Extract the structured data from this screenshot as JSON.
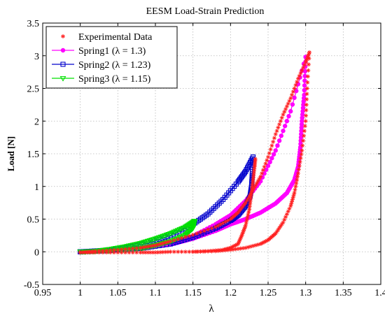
{
  "chart_data": {
    "type": "line",
    "title": "EESM Load-Strain Prediction",
    "xlabel": "λ",
    "ylabel": "Load [N]",
    "xlim": [
      0.95,
      1.4
    ],
    "ylim": [
      -0.5,
      3.5
    ],
    "xticks": [
      0.95,
      1.0,
      1.05,
      1.1,
      1.15,
      1.2,
      1.25,
      1.3,
      1.35,
      1.4
    ],
    "yticks": [
      -0.5,
      0,
      0.5,
      1,
      1.5,
      2,
      2.5,
      3,
      3.5
    ],
    "xtick_labels": [
      "0.95",
      "1",
      "1.05",
      "1.1",
      "1.15",
      "1.2",
      "1.25",
      "1.3",
      "1.35",
      "1.4"
    ],
    "ytick_labels": [
      "-0.5",
      "0",
      "0.5",
      "1",
      "1.5",
      "2",
      "2.5",
      "3",
      "3.5"
    ],
    "grid": true,
    "legend_position": "top-left",
    "series": [
      {
        "name": "Experimental Data",
        "color": "#ff2020",
        "marker": "asterisk",
        "line": false,
        "loading": [
          [
            1.0,
            -0.01
          ],
          [
            1.02,
            -0.01
          ],
          [
            1.05,
            -0.01
          ],
          [
            1.08,
            -0.01
          ],
          [
            1.1,
            -0.01
          ],
          [
            1.12,
            0.0
          ],
          [
            1.15,
            0.0
          ],
          [
            1.18,
            0.01
          ],
          [
            1.2,
            0.03
          ],
          [
            1.22,
            0.06
          ],
          [
            1.24,
            0.12
          ],
          [
            1.25,
            0.18
          ],
          [
            1.26,
            0.28
          ],
          [
            1.27,
            0.45
          ],
          [
            1.28,
            0.7
          ],
          [
            1.285,
            0.9
          ],
          [
            1.29,
            1.2
          ],
          [
            1.295,
            1.55
          ],
          [
            1.3,
            2.0
          ],
          [
            1.302,
            2.5
          ],
          [
            1.305,
            3.05
          ]
        ],
        "unloading": [
          [
            1.305,
            3.05
          ],
          [
            1.3,
            2.9
          ],
          [
            1.29,
            2.65
          ],
          [
            1.28,
            2.35
          ],
          [
            1.27,
            2.1
          ],
          [
            1.26,
            1.8
          ],
          [
            1.25,
            1.45
          ],
          [
            1.24,
            1.15
          ],
          [
            1.23,
            0.95
          ],
          [
            1.22,
            0.75
          ],
          [
            1.21,
            0.6
          ],
          [
            1.2,
            0.5
          ],
          [
            1.18,
            0.38
          ],
          [
            1.15,
            0.26
          ],
          [
            1.12,
            0.16
          ],
          [
            1.1,
            0.1
          ],
          [
            1.08,
            0.06
          ],
          [
            1.05,
            0.03
          ],
          [
            1.02,
            0.01
          ],
          [
            1.0,
            -0.01
          ]
        ],
        "branch2": [
          [
            1.15,
            0.0
          ],
          [
            1.17,
            0.01
          ],
          [
            1.19,
            0.03
          ],
          [
            1.2,
            0.06
          ],
          [
            1.21,
            0.12
          ],
          [
            1.215,
            0.25
          ],
          [
            1.22,
            0.4
          ],
          [
            1.225,
            0.65
          ],
          [
            1.228,
            0.9
          ],
          [
            1.23,
            1.1
          ],
          [
            1.232,
            1.3
          ],
          [
            1.233,
            1.42
          ]
        ]
      },
      {
        "name": "Spring1 (λ = 1.3)",
        "color": "#ff00ff",
        "marker": "circle",
        "line": true,
        "loading": [
          [
            1.0,
            0.0
          ],
          [
            1.03,
            0.01
          ],
          [
            1.06,
            0.03
          ],
          [
            1.09,
            0.06
          ],
          [
            1.12,
            0.12
          ],
          [
            1.15,
            0.24
          ],
          [
            1.18,
            0.42
          ],
          [
            1.2,
            0.56
          ],
          [
            1.22,
            0.78
          ],
          [
            1.24,
            1.08
          ],
          [
            1.26,
            1.55
          ],
          [
            1.28,
            2.15
          ],
          [
            1.3,
            2.98
          ]
        ],
        "unloading": [
          [
            1.3,
            2.98
          ],
          [
            1.298,
            2.4
          ],
          [
            1.295,
            2.0
          ],
          [
            1.293,
            1.6
          ],
          [
            1.29,
            1.3
          ],
          [
            1.285,
            1.1
          ],
          [
            1.275,
            0.9
          ],
          [
            1.26,
            0.74
          ],
          [
            1.24,
            0.6
          ],
          [
            1.22,
            0.5
          ],
          [
            1.2,
            0.42
          ],
          [
            1.18,
            0.32
          ],
          [
            1.15,
            0.2
          ],
          [
            1.12,
            0.11
          ],
          [
            1.08,
            0.05
          ],
          [
            1.04,
            0.02
          ],
          [
            1.0,
            0.0
          ]
        ]
      },
      {
        "name": "Spring2 (λ = 1.23)",
        "color": "#0000cc",
        "marker": "square",
        "line": true,
        "loading": [
          [
            1.0,
            0.0
          ],
          [
            1.03,
            0.02
          ],
          [
            1.06,
            0.06
          ],
          [
            1.09,
            0.13
          ],
          [
            1.12,
            0.25
          ],
          [
            1.15,
            0.42
          ],
          [
            1.17,
            0.58
          ],
          [
            1.19,
            0.8
          ],
          [
            1.21,
            1.07
          ],
          [
            1.22,
            1.23
          ],
          [
            1.23,
            1.45
          ]
        ],
        "unloading": [
          [
            1.23,
            1.45
          ],
          [
            1.229,
            1.2
          ],
          [
            1.228,
            1.0
          ],
          [
            1.226,
            0.85
          ],
          [
            1.22,
            0.7
          ],
          [
            1.21,
            0.56
          ],
          [
            1.2,
            0.48
          ],
          [
            1.18,
            0.36
          ],
          [
            1.15,
            0.22
          ],
          [
            1.12,
            0.12
          ],
          [
            1.08,
            0.05
          ],
          [
            1.04,
            0.02
          ],
          [
            1.0,
            0.0
          ]
        ]
      },
      {
        "name": "Spring3 (λ = 1.15)",
        "color": "#00e000",
        "marker": "triangle-down",
        "line": true,
        "loading": [
          [
            1.0,
            0.0
          ],
          [
            1.02,
            0.01
          ],
          [
            1.04,
            0.04
          ],
          [
            1.06,
            0.08
          ],
          [
            1.08,
            0.13
          ],
          [
            1.1,
            0.2
          ],
          [
            1.12,
            0.28
          ],
          [
            1.14,
            0.38
          ],
          [
            1.152,
            0.47
          ]
        ],
        "unloading": [
          [
            1.152,
            0.47
          ],
          [
            1.15,
            0.36
          ],
          [
            1.14,
            0.26
          ],
          [
            1.12,
            0.16
          ],
          [
            1.1,
            0.1
          ],
          [
            1.08,
            0.05
          ],
          [
            1.05,
            0.02
          ],
          [
            1.0,
            0.0
          ]
        ]
      }
    ]
  }
}
